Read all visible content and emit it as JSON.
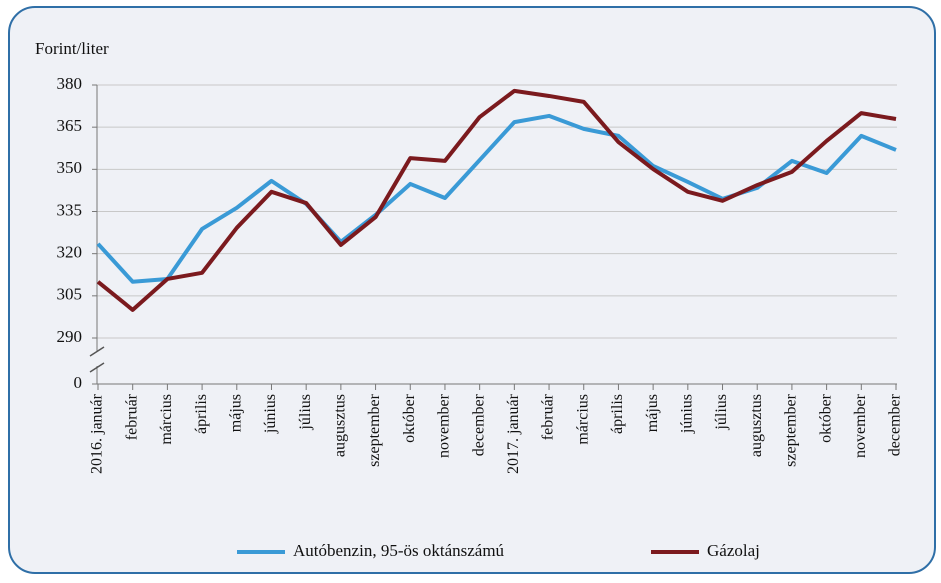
{
  "chart_data": {
    "type": "line",
    "y_axis_label": "Forint/liter",
    "categories": [
      "2016. január",
      "február",
      "március",
      "április",
      "május",
      "június",
      "július",
      "augusztus",
      "szeptember",
      "október",
      "november",
      "december",
      "2017. január",
      "február",
      "március",
      "április",
      "május",
      "június",
      "július",
      "augusztus",
      "szeptember",
      "október",
      "november",
      "december"
    ],
    "series": [
      {
        "name": "Autóbenzin, 95-ös oktánszámú",
        "color": "#3a9ad6",
        "values": [
          323.5,
          310,
          311,
          328.8,
          336.3,
          345.9,
          337.7,
          324.2,
          333.8,
          344.8,
          339.8,
          353.3,
          366.8,
          369,
          364.4,
          361.9,
          351.2,
          345.5,
          339.5,
          343.4,
          353,
          348.7,
          361.9,
          356.9
        ]
      },
      {
        "name": "Gázolaj",
        "color": "#7b1a1e",
        "values": [
          310,
          300,
          311,
          313.2,
          329.2,
          342,
          338,
          323.1,
          333,
          354,
          353,
          368.6,
          377.9,
          376.1,
          374,
          359.7,
          350.1,
          342,
          338.8,
          344.4,
          349.1,
          360.1,
          370,
          367.9
        ]
      }
    ],
    "ylim": [
      0,
      380
    ],
    "yticks": [
      0,
      290,
      305,
      320,
      335,
      350,
      365,
      380
    ],
    "y_axis_break": true,
    "grid": true
  }
}
